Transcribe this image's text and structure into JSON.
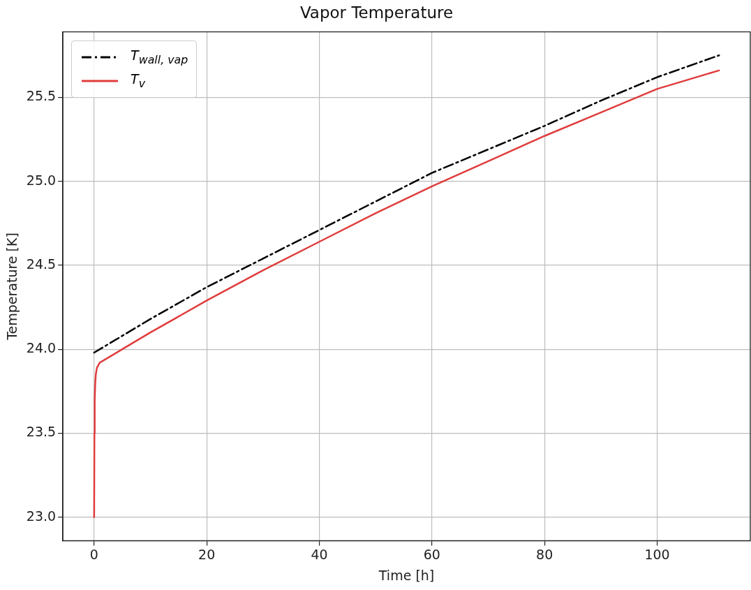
{
  "chart_data": {
    "type": "line",
    "title": "Vapor Temperature",
    "xlabel": "Time [h]",
    "ylabel": "Temperature [K]",
    "xlim": [
      -5.55,
      116.55
    ],
    "xticks": [
      0,
      20,
      40,
      60,
      80,
      100
    ],
    "ylim": [
      22.86,
      25.89
    ],
    "yticks": [
      {
        "value": 23,
        "label": "23.0"
      },
      23.5,
      {
        "value": 24,
        "label": "24.0"
      },
      24.5,
      {
        "value": 25,
        "label": "25.0"
      },
      25.5
    ],
    "grid": true,
    "legend": "top left",
    "marker": "none",
    "series": [
      {
        "name": "T$_{wall, vap}$",
        "color": "#000000",
        "line_style": "dashdot",
        "x": [
          0,
          10,
          20,
          30,
          40,
          50,
          60,
          70,
          80,
          90,
          100,
          111
        ],
        "values": [
          23.98,
          24.18,
          24.37,
          24.54,
          24.71,
          24.88,
          25.05,
          25.19,
          25.33,
          25.48,
          25.62,
          25.75
        ]
      },
      {
        "name": "T$_{v}$",
        "color": "#e03c3c",
        "line_style": "solid",
        "x": [
          0,
          0.05,
          0.1,
          0.2,
          0.3,
          0.5,
          1,
          5,
          10,
          20,
          30,
          40,
          50,
          60,
          70,
          80,
          90,
          100,
          111
        ],
        "values": [
          23.0,
          23.5,
          23.7,
          23.8,
          23.85,
          23.89,
          23.92,
          24.0,
          24.1,
          24.29,
          24.47,
          24.64,
          24.81,
          24.97,
          25.12,
          25.27,
          25.41,
          25.55,
          25.66
        ]
      }
    ]
  }
}
